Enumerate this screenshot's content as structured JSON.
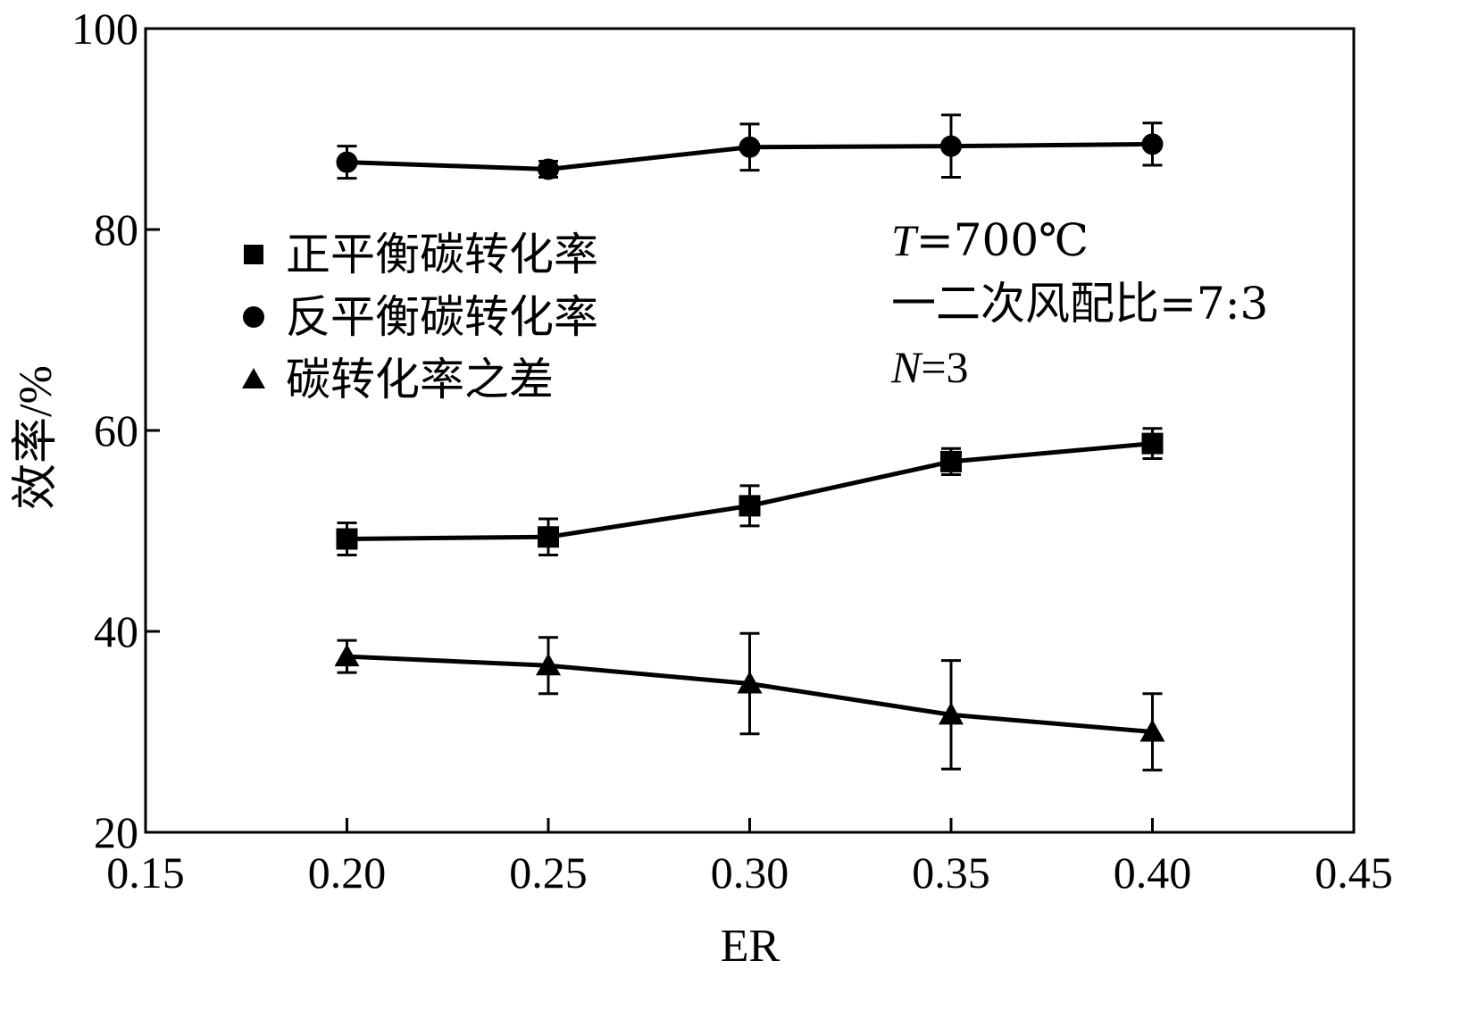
{
  "chart_data": {
    "type": "line",
    "xlabel": "ER",
    "ylabel": "效率/%",
    "xlim": [
      0.15,
      0.45
    ],
    "ylim": [
      20,
      100
    ],
    "x_ticks": [
      "0.15",
      "0.20",
      "0.25",
      "0.30",
      "0.35",
      "0.40",
      "0.45"
    ],
    "y_ticks": [
      "20",
      "40",
      "60",
      "80",
      "100"
    ],
    "x": [
      0.2,
      0.25,
      0.3,
      0.35,
      0.4
    ],
    "grid": false,
    "legend_position": "upper-left",
    "series": [
      {
        "name": "正平衡碳转化率",
        "marker": "square",
        "values": [
          49.2,
          49.4,
          52.5,
          56.9,
          58.7
        ],
        "errors": [
          1.6,
          1.8,
          2.0,
          1.3,
          1.5
        ]
      },
      {
        "name": "反平衡碳转化率",
        "marker": "circle",
        "values": [
          86.7,
          86.0,
          88.2,
          88.3,
          88.5
        ],
        "errors": [
          1.6,
          0.8,
          2.3,
          3.1,
          2.1
        ]
      },
      {
        "name": "碳转化率之差",
        "marker": "triangle",
        "values": [
          37.5,
          36.6,
          34.8,
          31.7,
          30.0
        ],
        "errors": [
          1.6,
          2.8,
          5.0,
          5.4,
          3.8
        ]
      }
    ],
    "annotations": {
      "temp_var": "T",
      "temp_value": "=700℃",
      "ratio": "一二次风配比=7:3",
      "n_var": "N",
      "n_value": "=3"
    }
  }
}
